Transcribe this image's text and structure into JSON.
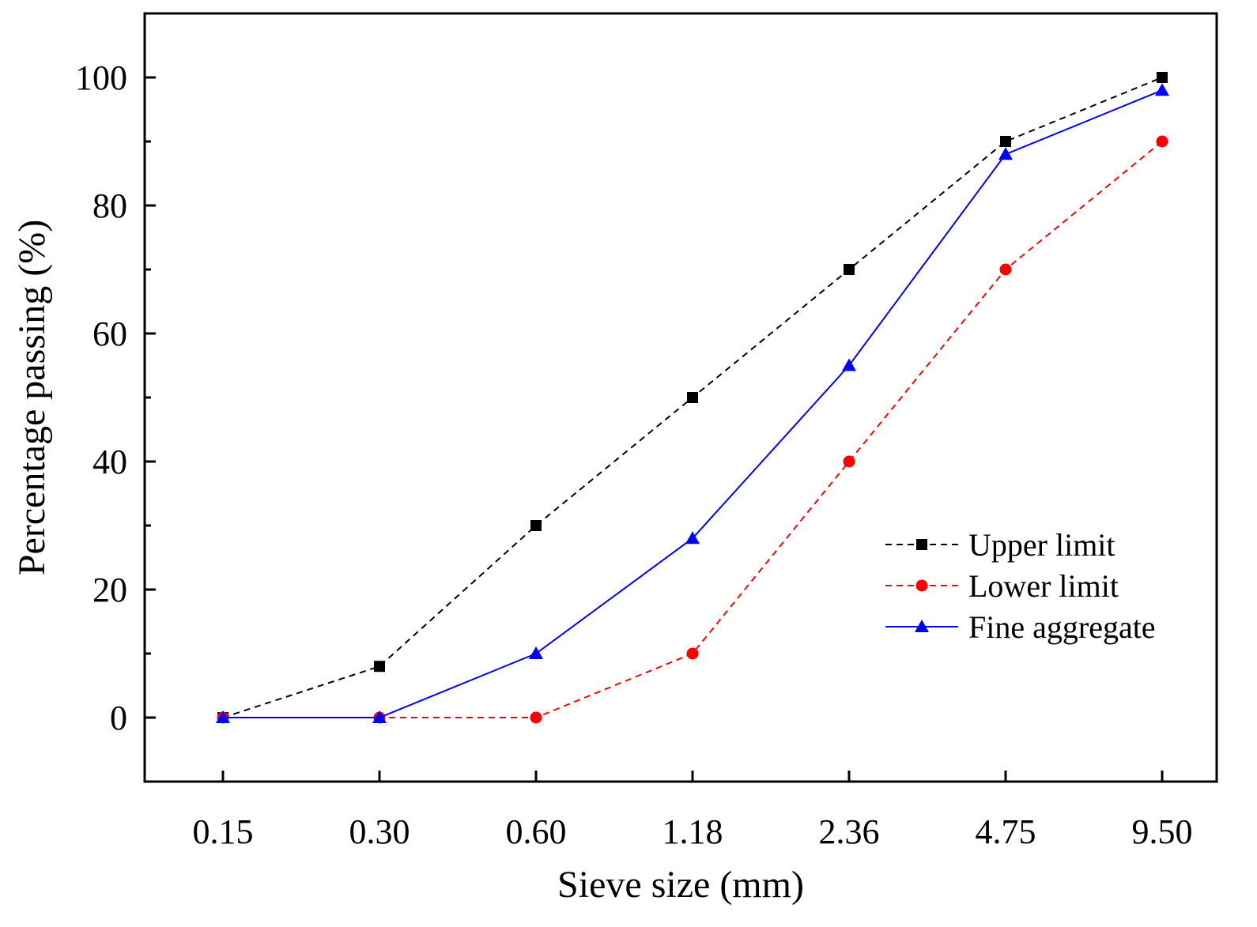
{
  "chart_data": {
    "type": "line",
    "title": "",
    "xlabel": "Sieve size (mm)",
    "ylabel": "Percentage passing (%)",
    "categories": [
      "0.15",
      "0.30",
      "0.60",
      "1.18",
      "2.36",
      "4.75",
      "9.50"
    ],
    "ylim": [
      -10,
      110
    ],
    "yticks": [
      0,
      20,
      40,
      60,
      80,
      100
    ],
    "yticks_minor": [
      10,
      30,
      50,
      70,
      90
    ],
    "grid": false,
    "legend_position": "center-right",
    "series": [
      {
        "name": "Upper limit",
        "values": [
          0,
          8,
          30,
          50,
          70,
          90,
          100
        ],
        "color": "#000000",
        "line_style": "dashed",
        "marker": "square"
      },
      {
        "name": "Lower limit",
        "values": [
          0,
          0,
          0,
          10,
          40,
          70,
          90
        ],
        "color": "#ff0000",
        "line_style": "dashed",
        "marker": "circle"
      },
      {
        "name": "Fine aggregate",
        "values": [
          0,
          0,
          10,
          28,
          55,
          88,
          98
        ],
        "color": "#0000ff",
        "line_style": "solid",
        "marker": "triangle"
      }
    ]
  }
}
